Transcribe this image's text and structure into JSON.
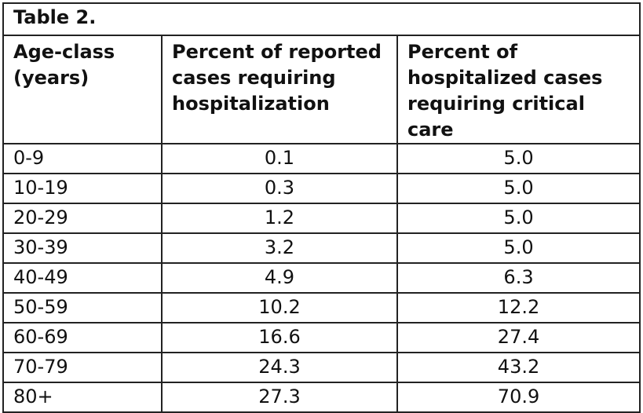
{
  "table": {
    "title": "Table 2.",
    "headers": [
      "Age-class\n(years)",
      "Percent of reported\ncases requiring\nhospitalization",
      "Percent of\nhospitalized cases\nrequiring critical care"
    ],
    "rows": [
      {
        "age": "0-9",
        "hosp": "0.1",
        "critical": "5.0"
      },
      {
        "age": "10-19",
        "hosp": "0.3",
        "critical": "5.0"
      },
      {
        "age": "20-29",
        "hosp": "1.2",
        "critical": "5.0"
      },
      {
        "age": "30-39",
        "hosp": "3.2",
        "critical": "5.0"
      },
      {
        "age": "40-49",
        "hosp": "4.9",
        "critical": "6.3"
      },
      {
        "age": "50-59",
        "hosp": "10.2",
        "critical": "12.2"
      },
      {
        "age": "60-69",
        "hosp": "16.6",
        "critical": "27.4"
      },
      {
        "age": "70-79",
        "hosp": "24.3",
        "critical": "43.2"
      },
      {
        "age": "80+",
        "hosp": "27.3",
        "critical": "70.9"
      }
    ]
  }
}
